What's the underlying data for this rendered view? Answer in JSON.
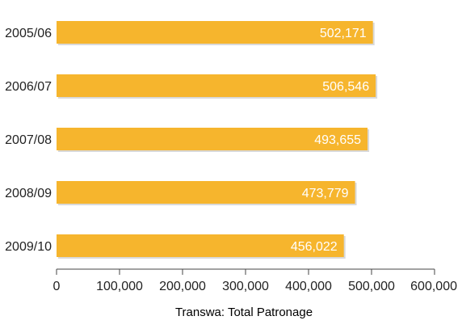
{
  "chart_data": {
    "type": "bar",
    "orientation": "horizontal",
    "categories": [
      "2005/06",
      "2006/07",
      "2007/08",
      "2008/09",
      "2009/10"
    ],
    "values": [
      502171,
      506546,
      493655,
      473779,
      456022
    ],
    "value_labels": [
      "502,171",
      "506,546",
      "493,655",
      "473,779",
      "456,022"
    ],
    "title": "",
    "xlabel": "Transwa: Total Patronage",
    "ylabel": "",
    "xlim": [
      0,
      600000
    ],
    "x_ticks": [
      0,
      100000,
      200000,
      300000,
      400000,
      500000,
      600000
    ],
    "x_tick_labels": [
      "0",
      "100,000",
      "200,000",
      "300,000",
      "400,000",
      "500,000",
      "600,000"
    ],
    "grid": false,
    "legend": "none",
    "colors": {
      "bar": "#F6B52D",
      "bar_label": "#ffffff",
      "axis": "#444444",
      "text": "#222222"
    }
  }
}
